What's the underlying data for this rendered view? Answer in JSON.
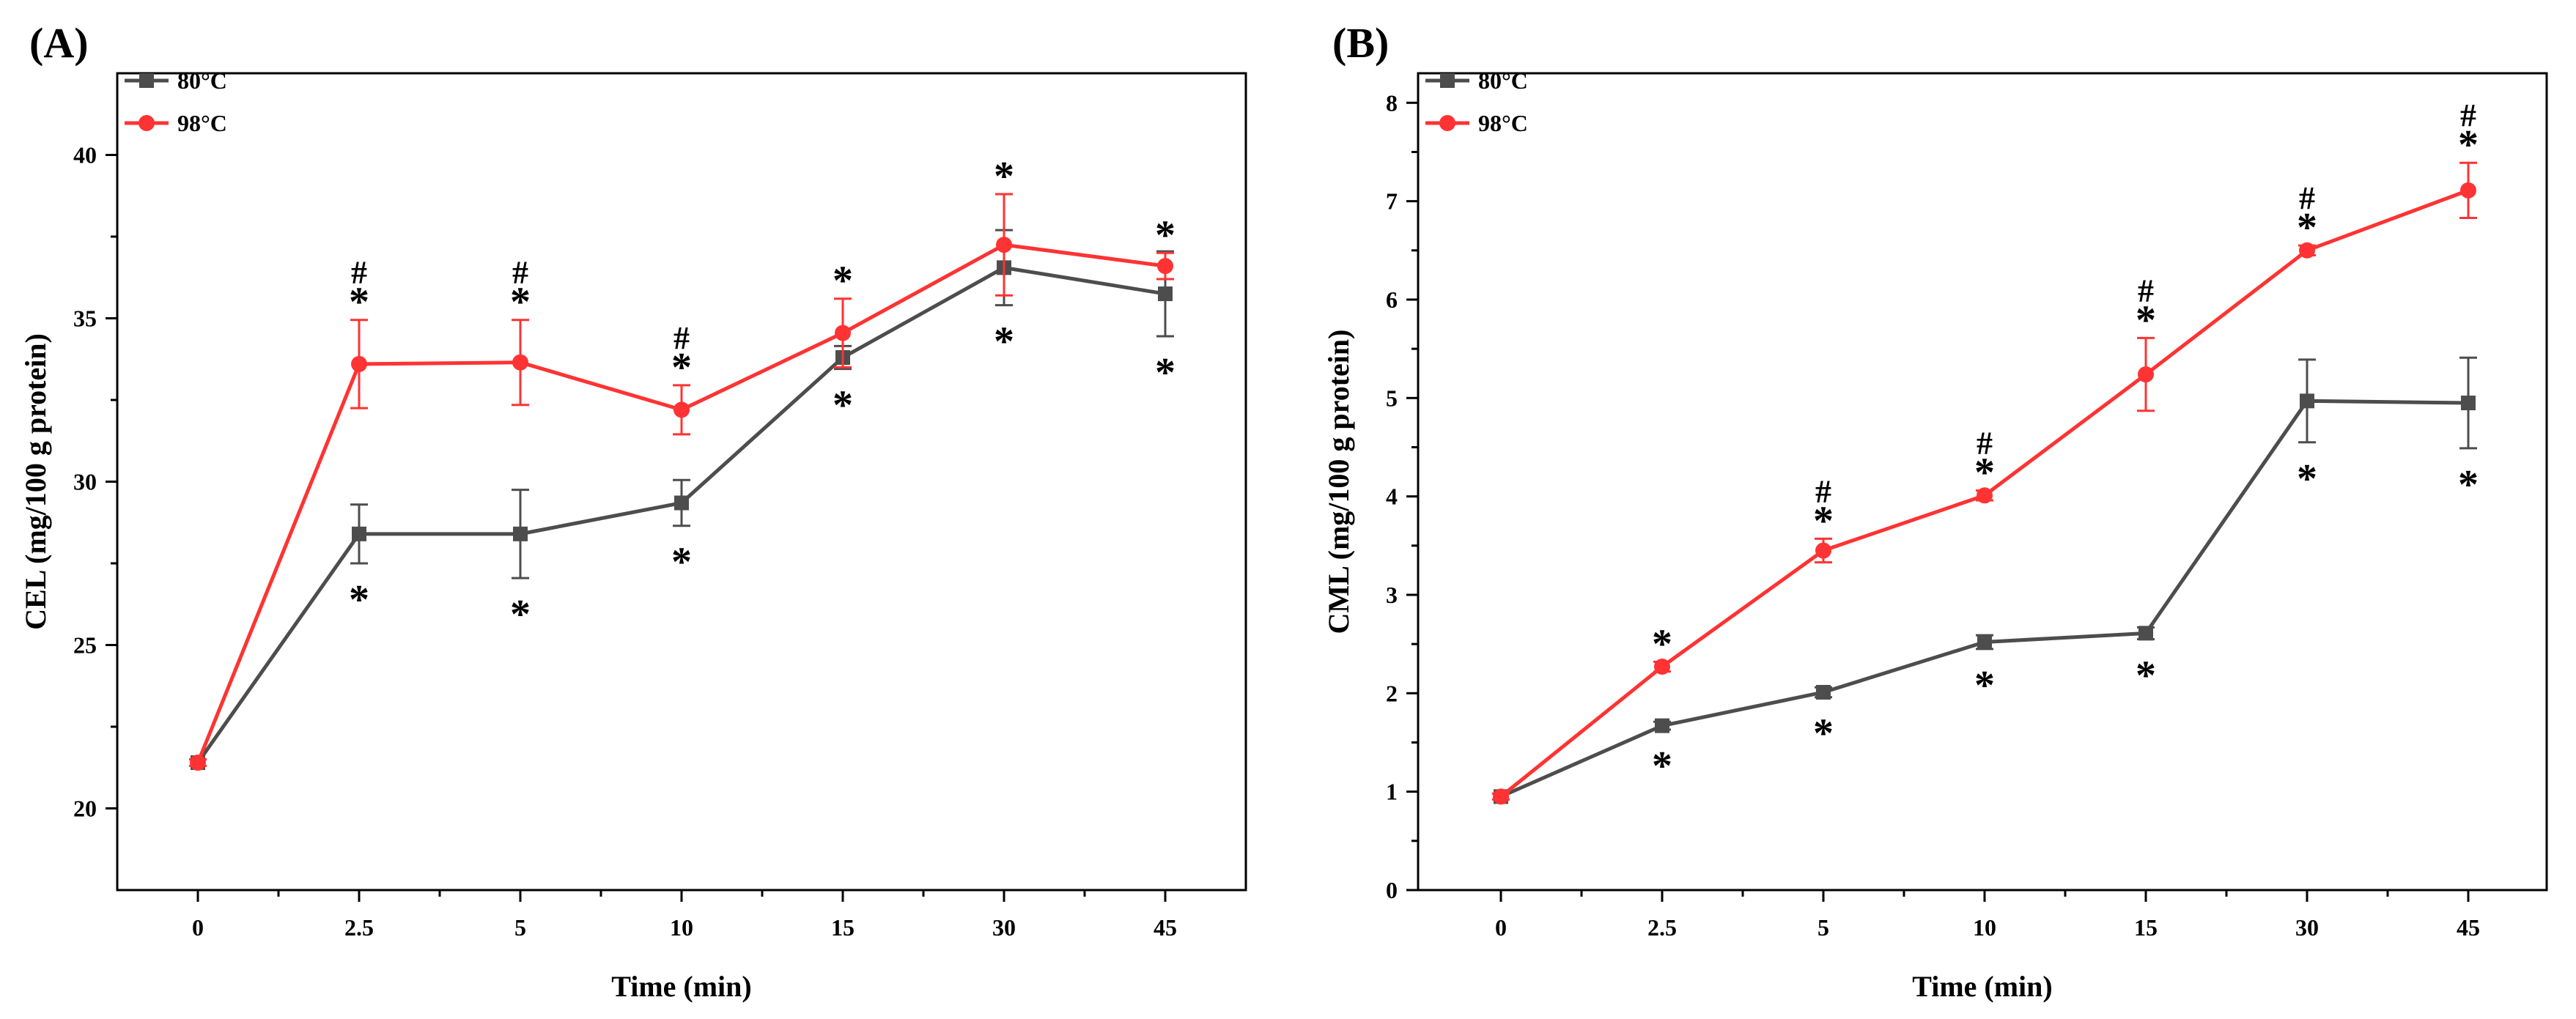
{
  "chart_data": [
    {
      "type": "line",
      "panel": "(A)",
      "xlabel": "Time (min)",
      "ylabel": "CEL (mg/100 g protein)",
      "categories": [
        "0",
        "2.5",
        "5",
        "10",
        "15",
        "30",
        "45"
      ],
      "ylim": [
        17.5,
        42.5
      ],
      "yticks": [
        20,
        25,
        30,
        35,
        40
      ],
      "legend_position": "top-left",
      "series": [
        {
          "name": "80°C",
          "color": "#4d4d4d",
          "marker": "square",
          "values": [
            21.4,
            28.4,
            28.4,
            29.35,
            33.8,
            36.55,
            35.75
          ],
          "errors": [
            0.1,
            0.9,
            1.35,
            0.7,
            0.35,
            1.15,
            1.3
          ],
          "below_marks": [
            "",
            "*",
            "*",
            "*",
            "*",
            "*",
            "*"
          ]
        },
        {
          "name": "98°C",
          "color": "#ff3333",
          "marker": "circle",
          "values": [
            21.4,
            33.6,
            33.65,
            32.2,
            34.55,
            37.25,
            36.6
          ],
          "errors": [
            0.1,
            1.35,
            1.3,
            0.75,
            1.05,
            1.55,
            0.4
          ],
          "above_marks": [
            "",
            "#*",
            "#*",
            "#*",
            "*",
            "*",
            "*"
          ]
        }
      ]
    },
    {
      "type": "line",
      "panel": "(B)",
      "xlabel": "Time (min)",
      "ylabel": "CML (mg/100 g protein)",
      "categories": [
        "0",
        "2.5",
        "5",
        "10",
        "15",
        "30",
        "45"
      ],
      "ylim": [
        0,
        8.3
      ],
      "yticks": [
        0,
        1,
        2,
        3,
        4,
        5,
        6,
        7,
        8
      ],
      "legend_position": "top-left",
      "series": [
        {
          "name": "80°C",
          "color": "#4d4d4d",
          "marker": "square",
          "values": [
            0.95,
            1.67,
            2.01,
            2.52,
            2.61,
            4.97,
            4.95
          ],
          "errors": [
            0.03,
            0.04,
            0.05,
            0.07,
            0.06,
            0.42,
            0.46
          ],
          "below_marks": [
            "",
            "*",
            "*",
            "*",
            "*",
            "*",
            "*"
          ]
        },
        {
          "name": "98°C",
          "color": "#ff3333",
          "marker": "circle",
          "values": [
            0.95,
            2.27,
            3.45,
            4.01,
            5.24,
            6.5,
            7.11
          ],
          "errors": [
            0.03,
            0.05,
            0.12,
            0.05,
            0.37,
            0.05,
            0.28
          ],
          "above_marks": [
            "",
            "*",
            "#*",
            "#*",
            "#*",
            "#*",
            "#*"
          ]
        }
      ]
    }
  ]
}
